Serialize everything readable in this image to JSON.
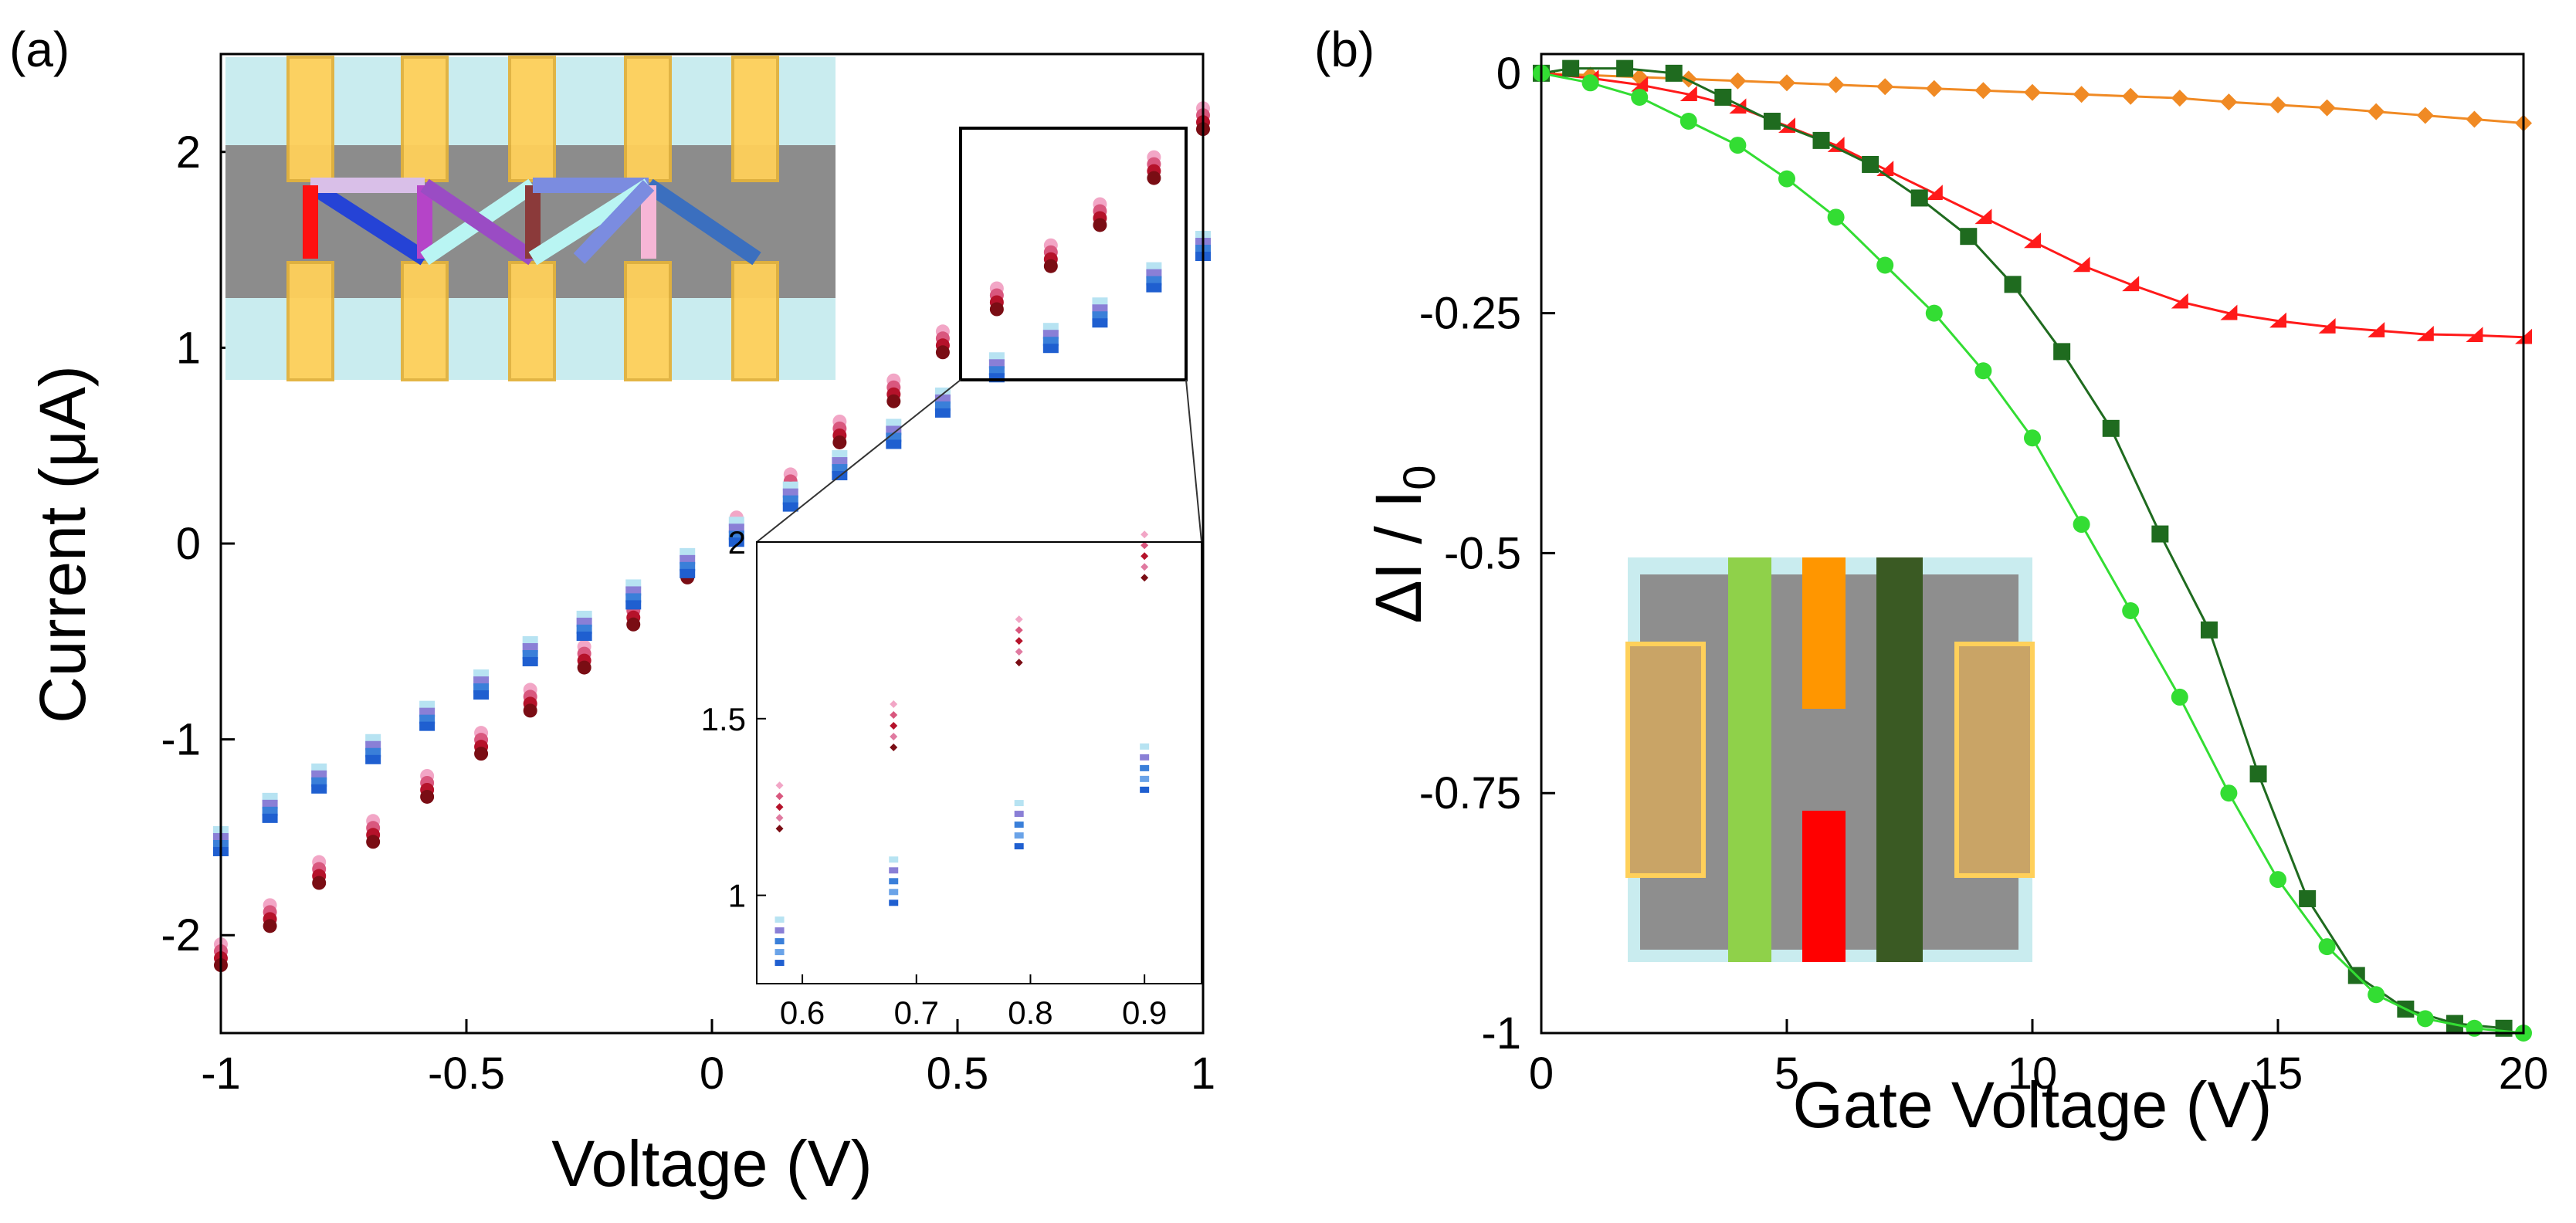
{
  "chart_data": [
    {
      "panel_label": "(a)",
      "type": "scatter",
      "xlabel": "Voltage (V)",
      "ylabel": "Current (μA)",
      "xlim": [
        -1,
        1
      ],
      "ylim": [
        -2.5,
        2.5
      ],
      "xticks": [
        -1,
        -0.5,
        0,
        0.5,
        1
      ],
      "xtick_labels": [
        "-1",
        "-0.5",
        "0",
        "0.5",
        "1"
      ],
      "yticks": [
        -2,
        -1,
        0,
        1,
        2
      ],
      "ytick_labels": [
        "-2",
        "-1",
        "0",
        "1",
        "2"
      ],
      "x": [
        -1.0,
        -0.9,
        -0.8,
        -0.69,
        -0.58,
        -0.47,
        -0.37,
        -0.26,
        -0.16,
        -0.05,
        0.05,
        0.16,
        0.26,
        0.37,
        0.47,
        0.58,
        0.69,
        0.79,
        0.9,
        1.0
      ],
      "series": [
        {
          "name": "red group",
          "color": "#c0142b",
          "values": [
            -2.1,
            -1.9,
            -1.68,
            -1.47,
            -1.24,
            -1.02,
            -0.8,
            -0.58,
            -0.36,
            -0.12,
            0.08,
            0.3,
            0.57,
            0.78,
            1.03,
            1.25,
            1.47,
            1.68,
            1.92,
            2.17
          ]
        },
        {
          "name": "blue group",
          "color": "#3a7fd9",
          "values": [
            -1.52,
            -1.35,
            -1.2,
            -1.05,
            -0.88,
            -0.72,
            -0.55,
            -0.42,
            -0.26,
            -0.1,
            0.06,
            0.24,
            0.4,
            0.56,
            0.72,
            0.9,
            1.05,
            1.18,
            1.36,
            1.52
          ]
        }
      ],
      "inset": {
        "xlim": [
          0.56,
          0.95
        ],
        "ylim": [
          0.75,
          2.0
        ],
        "xticks": [
          0.6,
          0.7,
          0.8,
          0.9
        ],
        "xtick_labels": [
          "0.6",
          "0.7",
          "0.8",
          "0.9"
        ],
        "yticks": [
          1,
          1.5,
          2
        ],
        "ytick_labels": [
          "1",
          "1.5",
          "2"
        ],
        "x": [
          0.58,
          0.68,
          0.79,
          0.9
        ],
        "red_values": [
          1.25,
          1.48,
          1.72,
          1.96
        ],
        "blue_values": [
          0.87,
          1.04,
          1.2,
          1.36
        ]
      }
    },
    {
      "panel_label": "(b)",
      "type": "line",
      "xlabel": "Gate Voltage (V)",
      "ylabel": "ΔI / I",
      "ylabel_sub": "0",
      "xlim": [
        0,
        20
      ],
      "ylim": [
        -1,
        0.02
      ],
      "xticks": [
        0,
        5,
        10,
        15,
        20
      ],
      "xtick_labels": [
        "0",
        "5",
        "10",
        "15",
        "20"
      ],
      "yticks": [
        0,
        -0.25,
        -0.5,
        -0.75,
        -1
      ],
      "ytick_labels": [
        "0",
        "-0.25",
        "-0.5",
        "-0.75",
        "-1"
      ],
      "series": [
        {
          "name": "orange",
          "color": "#f08a24",
          "marker": "diamond",
          "x": [
            0,
            1,
            2,
            3,
            4,
            5,
            6,
            7,
            8,
            9,
            10,
            11,
            12,
            13,
            14,
            15,
            16,
            17,
            18,
            19,
            20
          ],
          "values": [
            0.0,
            -0.002,
            -0.004,
            -0.006,
            -0.008,
            -0.01,
            -0.012,
            -0.014,
            -0.016,
            -0.018,
            -0.02,
            -0.022,
            -0.024,
            -0.026,
            -0.03,
            -0.033,
            -0.036,
            -0.04,
            -0.044,
            -0.048,
            -0.052
          ]
        },
        {
          "name": "red",
          "color": "#ff1a1a",
          "marker": "triangle",
          "x": [
            0,
            1,
            2,
            3,
            4,
            5,
            6,
            7,
            8,
            9,
            10,
            11,
            12,
            13,
            14,
            15,
            16,
            17,
            18,
            19,
            20
          ],
          "values": [
            0.0,
            -0.005,
            -0.012,
            -0.022,
            -0.035,
            -0.055,
            -0.075,
            -0.1,
            -0.125,
            -0.15,
            -0.175,
            -0.2,
            -0.22,
            -0.238,
            -0.25,
            -0.258,
            -0.264,
            -0.268,
            -0.272,
            -0.273,
            -0.275
          ]
        },
        {
          "name": "dark green",
          "color": "#1f6b1f",
          "marker": "square",
          "x": [
            0,
            0.6,
            1.7,
            2.7,
            3.7,
            4.7,
            5.7,
            6.7,
            7.7,
            8.7,
            9.6,
            10.6,
            11.6,
            12.6,
            13.6,
            14.6,
            15.6,
            16.6,
            17.6,
            18.6,
            19.6
          ],
          "values": [
            0.0,
            0.005,
            0.005,
            0.0,
            -0.025,
            -0.05,
            -0.07,
            -0.095,
            -0.13,
            -0.17,
            -0.22,
            -0.29,
            -0.37,
            -0.48,
            -0.58,
            -0.73,
            -0.86,
            -0.94,
            -0.975,
            -0.99,
            -0.995
          ]
        },
        {
          "name": "light green",
          "color": "#33dd33",
          "marker": "circle",
          "x": [
            0,
            1,
            2,
            3,
            4,
            5,
            6,
            7,
            8,
            9,
            10,
            11,
            12,
            13,
            14,
            15,
            16,
            17,
            18,
            19,
            20
          ],
          "values": [
            0.0,
            -0.01,
            -0.025,
            -0.05,
            -0.075,
            -0.11,
            -0.15,
            -0.2,
            -0.25,
            -0.31,
            -0.38,
            -0.47,
            -0.56,
            -0.65,
            -0.75,
            -0.84,
            -0.91,
            -0.96,
            -0.985,
            -0.995,
            -1.0
          ]
        }
      ]
    }
  ]
}
